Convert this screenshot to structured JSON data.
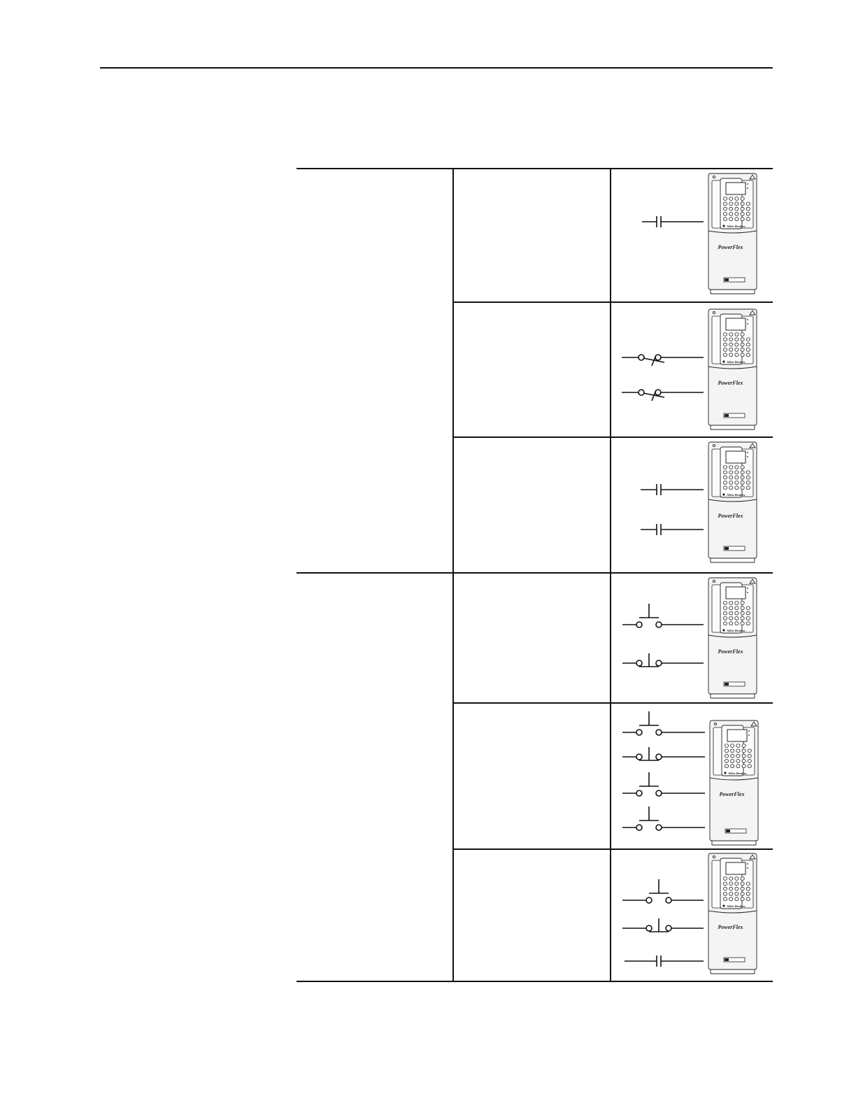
{
  "drive": {
    "brand_mark": "Allen-Bradley",
    "model_mark": "PowerFlex"
  },
  "rows": [
    {
      "symbols": [
        "contact_no"
      ]
    },
    {
      "symbols": [
        "switch_2wire",
        "switch_2wire"
      ]
    },
    {
      "symbols": [
        "contact_no",
        "contact_no"
      ]
    },
    {
      "symbols": [
        "pushbutton_no",
        "pushbutton_nc"
      ]
    },
    {
      "symbols": [
        "pushbutton_no",
        "pushbutton_nc",
        "pushbutton_no",
        "pushbutton_no"
      ]
    },
    {
      "symbols": [
        "pushbutton_no",
        "pushbutton_nc",
        "contact_no"
      ]
    }
  ]
}
